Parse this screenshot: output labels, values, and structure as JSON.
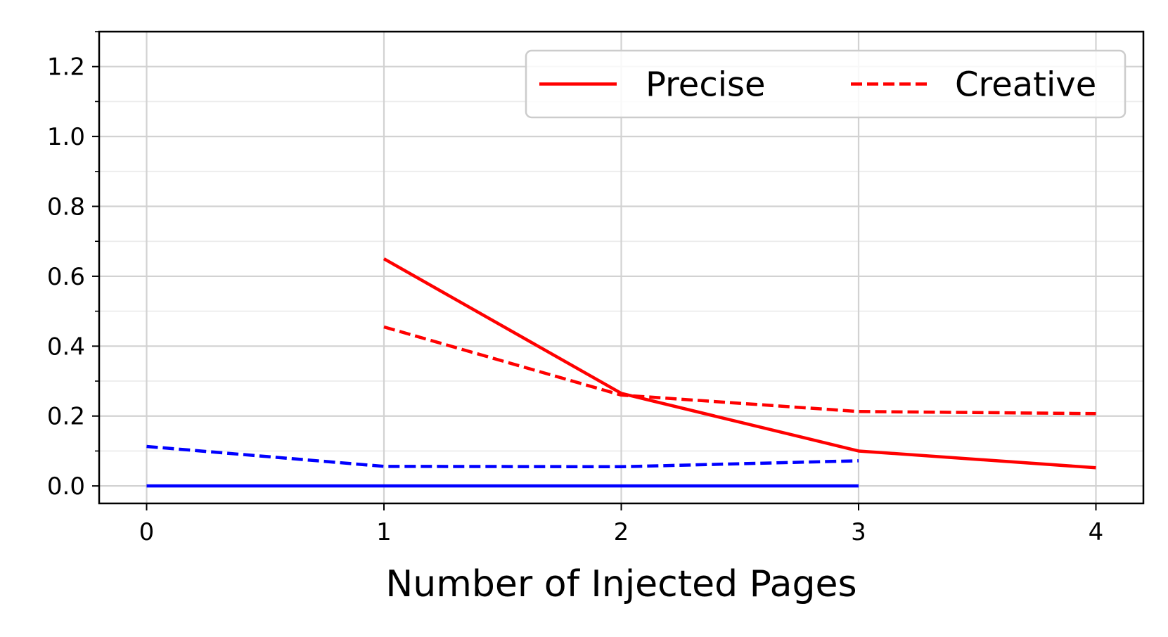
{
  "chart_data": {
    "type": "line",
    "xlabel": "Number of Injected Pages",
    "ylabel": "",
    "xlim": [
      -0.2,
      4.2
    ],
    "ylim": [
      -0.05,
      1.3
    ],
    "xticks": [
      0,
      1,
      2,
      3,
      4
    ],
    "xtick_labels": [
      "0",
      "1",
      "2",
      "3",
      "4"
    ],
    "yticks": [
      0.0,
      0.2,
      0.4,
      0.6,
      0.8,
      1.0,
      1.2
    ],
    "ytick_labels": [
      "0.0",
      "0.2",
      "0.4",
      "0.6",
      "0.8",
      "1.0",
      "1.2"
    ],
    "y_minor_step": 0.1,
    "grid": true,
    "legend_position": "top-right",
    "legend": [
      {
        "label": "Precise",
        "style": "solid",
        "color": "#ff0000"
      },
      {
        "label": "Creative",
        "style": "dashed",
        "color": "#ff0000"
      }
    ],
    "series": [
      {
        "color": "#ff0000",
        "style": "solid",
        "x": [
          1,
          2,
          3,
          4
        ],
        "y": [
          0.65,
          0.265,
          0.1,
          0.052
        ]
      },
      {
        "color": "#ff0000",
        "style": "dashed",
        "x": [
          1,
          2,
          3,
          4
        ],
        "y": [
          0.455,
          0.26,
          0.213,
          0.207
        ]
      },
      {
        "color": "#0000ff",
        "style": "solid",
        "x": [
          0,
          1,
          2,
          3
        ],
        "y": [
          0.0,
          0.0,
          0.0,
          0.0
        ]
      },
      {
        "color": "#0000ff",
        "style": "dashed",
        "x": [
          0,
          1,
          2,
          3
        ],
        "y": [
          0.113,
          0.056,
          0.055,
          0.072
        ]
      }
    ]
  }
}
